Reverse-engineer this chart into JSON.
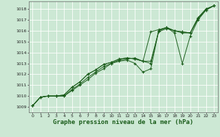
{
  "bg_color": "#cce8d4",
  "grid_color": "#aacfb8",
  "line_color": "#1a5c1a",
  "marker_color": "#1a5c1a",
  "xlabel": "Graphe pression niveau de la mer (hPa)",
  "xlabel_fontsize": 6.5,
  "xlim": [
    -0.5,
    23.5
  ],
  "ylim": [
    1008.5,
    1018.7
  ],
  "xticks": [
    0,
    1,
    2,
    3,
    4,
    5,
    6,
    7,
    8,
    9,
    10,
    11,
    12,
    13,
    14,
    15,
    16,
    17,
    18,
    19,
    20,
    21,
    22,
    23
  ],
  "yticks": [
    1009,
    1010,
    1011,
    1012,
    1013,
    1014,
    1015,
    1016,
    1017,
    1018
  ],
  "series": [
    [
      1009.1,
      1009.9,
      1010.0,
      1010.0,
      1010.0,
      1010.5,
      1011.0,
      1011.5,
      1012.1,
      1012.5,
      1013.0,
      1013.2,
      1013.3,
      1013.0,
      1012.2,
      1012.5,
      1016.0,
      1016.3,
      1015.8,
      1013.0,
      1015.5,
      1017.0,
      1017.9,
      1018.3
    ],
    [
      1009.1,
      1009.9,
      1010.0,
      1010.0,
      1010.0,
      1010.6,
      1011.1,
      1011.7,
      1012.2,
      1012.7,
      1013.0,
      1013.3,
      1013.4,
      1013.5,
      1013.2,
      1013.2,
      1015.9,
      1016.2,
      1016.0,
      1015.8,
      1015.8,
      1017.1,
      1017.9,
      1018.3
    ],
    [
      1009.1,
      1009.9,
      1010.0,
      1010.0,
      1010.1,
      1010.8,
      1011.3,
      1012.0,
      1012.4,
      1012.9,
      1013.1,
      1013.4,
      1013.5,
      1013.4,
      1013.2,
      1013.0,
      1016.0,
      1016.3,
      1016.0,
      1015.9,
      1015.8,
      1017.2,
      1018.0,
      1018.3
    ],
    [
      1009.1,
      1009.9,
      1010.0,
      1010.0,
      1010.1,
      1010.8,
      1011.3,
      1012.0,
      1012.4,
      1012.9,
      1013.1,
      1013.4,
      1013.5,
      1013.4,
      1013.2,
      1015.9,
      1016.1,
      1016.3,
      1016.0,
      1015.9,
      1015.8,
      1017.2,
      1018.0,
      1018.3
    ]
  ]
}
